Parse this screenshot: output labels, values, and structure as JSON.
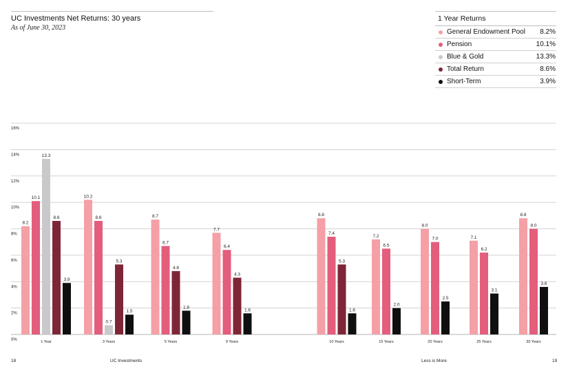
{
  "header": {
    "title": "UC Investments Net Returns: 30 years",
    "subtitle": "As of June 30, 2023"
  },
  "legend": {
    "title": "1 Year Returns",
    "items": [
      {
        "name": "General Endowment Pool",
        "value": "8.2%",
        "color": "#f4a0a6"
      },
      {
        "name": "Pension",
        "value": "10.1%",
        "color": "#e35d7c"
      },
      {
        "name": "Blue & Gold",
        "value": "13.3%",
        "color": "#c9c9cb"
      },
      {
        "name": "Total Return",
        "value": "8.6%",
        "color": "#7e2637"
      },
      {
        "name": "Short-Term",
        "value": "3.9%",
        "color": "#0f0f0f"
      }
    ]
  },
  "footer": {
    "page_left": "18",
    "section_left": "UC Investments",
    "section_right": "Less is More",
    "page_right": "19"
  },
  "chart_data": {
    "type": "bar",
    "title": "UC Investments Net Returns: 30 years",
    "subtitle": "As of June 30, 2023",
    "xlabel": "",
    "ylabel": "",
    "ylim": [
      0,
      16
    ],
    "yticks": [
      "0%",
      "2%",
      "4%",
      "6%",
      "8%",
      "10%",
      "12%",
      "14%",
      "16%"
    ],
    "grid": true,
    "legend_position": "top-right",
    "categories": [
      "1 Year",
      "3 Years",
      "5 Years",
      "9 Years",
      "10 Years",
      "15 Years",
      "20 Years",
      "25 Years",
      "30 Years"
    ],
    "series": [
      {
        "name": "General Endowment Pool",
        "color": "#f4a0a6",
        "values": [
          8.2,
          10.2,
          8.7,
          7.7,
          8.8,
          7.2,
          8.0,
          7.1,
          8.8
        ],
        "labels": [
          "8.2",
          "10.2",
          "8.7",
          "7.7",
          "8.8",
          "7.2",
          "8.0",
          "7.1",
          "8.8"
        ]
      },
      {
        "name": "Pension",
        "color": "#e35d7c",
        "values": [
          10.1,
          8.6,
          6.7,
          6.4,
          7.4,
          6.5,
          7.0,
          6.2,
          8.0
        ],
        "labels": [
          "10.1",
          "8.6",
          "6.7",
          "6.4",
          "7.4",
          "6.5",
          "7.0",
          "6.2",
          "8.0"
        ]
      },
      {
        "name": "Blue & Gold",
        "color": "#c9c9cb",
        "values": [
          13.3,
          0.7,
          null,
          null,
          null,
          null,
          null,
          null,
          null
        ],
        "labels": [
          "13.3",
          "0.7",
          null,
          null,
          null,
          null,
          null,
          null,
          null
        ]
      },
      {
        "name": "Total Return",
        "color": "#7e2637",
        "values": [
          8.6,
          5.3,
          4.8,
          4.3,
          5.3,
          null,
          null,
          null,
          null
        ],
        "labels": [
          "8.6",
          "5.3",
          "4.8",
          "4.3",
          "5.3",
          null,
          null,
          null,
          null
        ]
      },
      {
        "name": "Short-Term",
        "color": "#0f0f0f",
        "values": [
          3.9,
          1.5,
          1.8,
          1.6,
          1.6,
          2.0,
          2.5,
          3.1,
          3.6
        ],
        "labels": [
          "3.9",
          "1.5",
          "1.8",
          "1.6",
          "1.6",
          "2.0",
          "2.5",
          "3.1",
          "3.6"
        ]
      }
    ]
  }
}
